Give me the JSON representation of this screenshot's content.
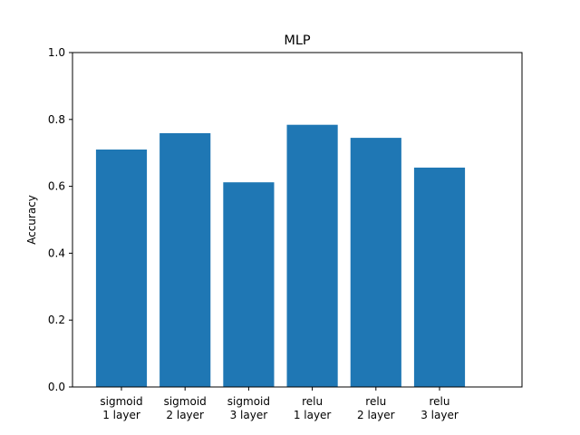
{
  "chart_data": {
    "type": "bar",
    "title": "MLP",
    "xlabel": "",
    "ylabel": "Accuracy",
    "categories": [
      [
        "sigmoid",
        "1 layer"
      ],
      [
        "sigmoid",
        "2 layer"
      ],
      [
        "sigmoid",
        "3 layer"
      ],
      [
        "relu",
        "1 layer"
      ],
      [
        "relu",
        "2 layer"
      ],
      [
        "relu",
        "3 layer"
      ]
    ],
    "values": [
      0.71,
      0.759,
      0.612,
      0.784,
      0.745,
      0.656
    ],
    "ylim": [
      0,
      1.0
    ],
    "yticks": [
      "0.0",
      "0.2",
      "0.4",
      "0.6",
      "0.8",
      "1.0"
    ],
    "grid": false,
    "bar_color": "#1f77b4"
  }
}
